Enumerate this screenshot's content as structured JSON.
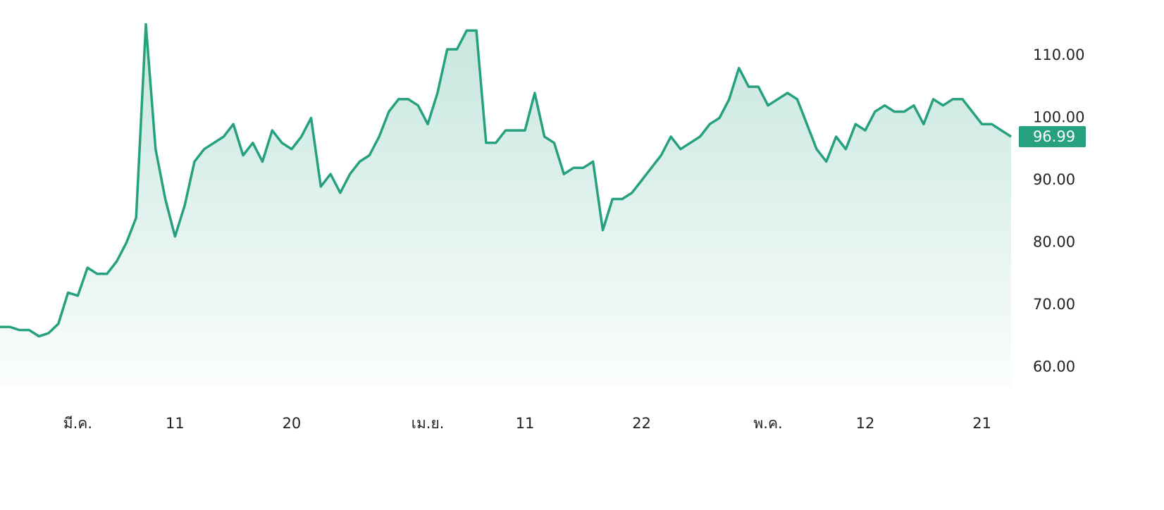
{
  "chart_data": {
    "type": "area",
    "color": "#26a17f",
    "categories": [
      null,
      null,
      null,
      null,
      null,
      null,
      null,
      null,
      "มี.ค.",
      null,
      null,
      null,
      null,
      null,
      null,
      null,
      null,
      null,
      "11",
      null,
      null,
      null,
      null,
      null,
      null,
      null,
      null,
      null,
      null,
      null,
      "20",
      null,
      null,
      null,
      null,
      null,
      null,
      null,
      null,
      null,
      null,
      null,
      null,
      null,
      "เม.ย.",
      null,
      null,
      null,
      null,
      null,
      null,
      null,
      null,
      null,
      "11",
      null,
      null,
      null,
      null,
      null,
      null,
      null,
      null,
      null,
      null,
      null,
      "22",
      null,
      null,
      null,
      null,
      null,
      null,
      null,
      null,
      null,
      null,
      null,
      null,
      "พ.ค.",
      null,
      null,
      null,
      null,
      null,
      null,
      null,
      null,
      null,
      "12",
      null,
      null,
      null,
      null,
      null,
      null,
      null,
      null,
      null,
      null,
      null,
      "21",
      null,
      null,
      null
    ],
    "values": [
      66.5,
      66.5,
      66,
      66,
      65,
      65.5,
      67,
      72,
      71.5,
      76,
      75,
      75,
      77,
      80,
      84,
      115,
      95,
      87,
      81,
      86,
      93,
      95,
      96,
      97,
      99,
      94,
      96,
      93,
      98,
      96,
      95,
      97,
      100,
      89,
      91,
      88,
      91,
      93,
      94,
      97,
      101,
      103,
      103,
      102,
      99,
      104,
      111,
      111,
      114,
      114,
      96,
      96,
      98,
      98,
      98,
      104,
      97,
      96,
      91,
      92,
      92,
      93,
      82,
      87,
      87,
      88,
      90,
      92,
      94,
      97,
      95,
      96,
      97,
      99,
      100,
      103,
      108,
      105,
      105,
      102,
      103,
      104,
      103,
      99,
      95,
      93,
      97,
      95,
      99,
      98,
      101,
      102,
      101,
      101,
      102,
      99,
      103,
      102,
      103,
      103,
      101,
      99,
      99,
      98,
      96.99
    ],
    "ylim": [
      56.8,
      118.9
    ],
    "yticks": [
      {
        "value": 60,
        "label": "60.00"
      },
      {
        "value": 70,
        "label": "70.00"
      },
      {
        "value": 80,
        "label": "80.00"
      },
      {
        "value": 90,
        "label": "90.00"
      },
      {
        "value": 100,
        "label": "100.00"
      },
      {
        "value": 110,
        "label": "110.00"
      }
    ]
  }
}
